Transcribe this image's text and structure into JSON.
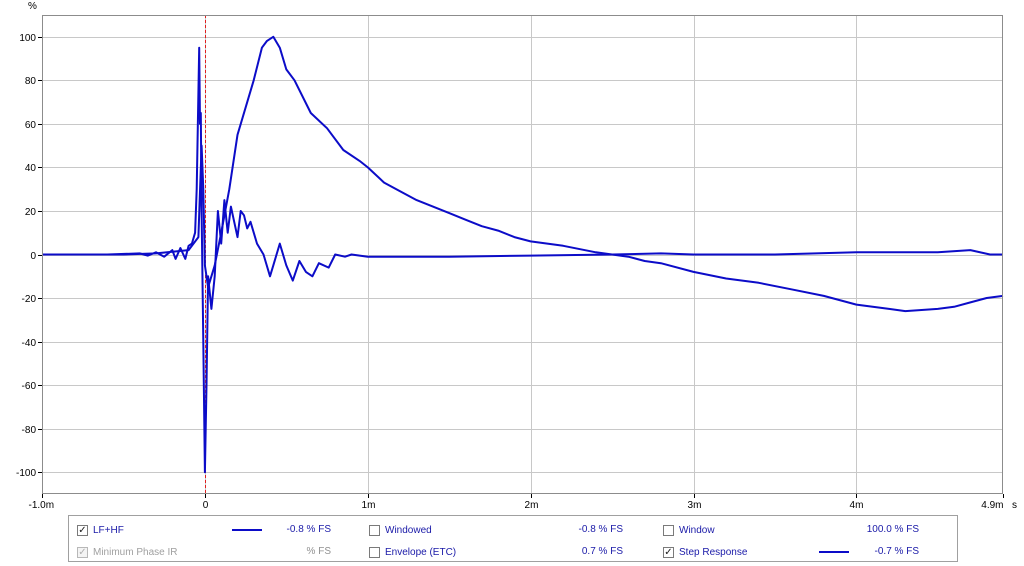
{
  "chart_data": {
    "type": "line",
    "ylabel": "%",
    "xunit": "s",
    "xlim": [
      -1.0,
      4.9
    ],
    "ylim": [
      -110,
      110
    ],
    "x_ticks": [
      {
        "value": -1.0,
        "label": "-1.0m"
      },
      {
        "value": 0,
        "label": "0"
      },
      {
        "value": 1,
        "label": "1m"
      },
      {
        "value": 2,
        "label": "2m"
      },
      {
        "value": 3,
        "label": "3m"
      },
      {
        "value": 4,
        "label": "4m"
      },
      {
        "value": 4.9,
        "label": "4.9m"
      }
    ],
    "y_ticks": [
      100,
      80,
      60,
      40,
      20,
      0,
      -20,
      -40,
      -60,
      -80,
      -100
    ],
    "grid": true,
    "marker_line_x": 0,
    "colors": {
      "series": "#0c0cc8",
      "marker": "#e02020",
      "grid": "#c8c8c8",
      "frame": "#8c8c8c"
    },
    "series": [
      {
        "name": "LF+HF",
        "points": [
          [
            -1.0,
            0
          ],
          [
            -0.6,
            0
          ],
          [
            -0.4,
            0.5
          ],
          [
            -0.35,
            -0.5
          ],
          [
            -0.3,
            1
          ],
          [
            -0.25,
            -1
          ],
          [
            -0.2,
            2
          ],
          [
            -0.18,
            -2
          ],
          [
            -0.15,
            3
          ],
          [
            -0.12,
            -2
          ],
          [
            -0.1,
            4
          ],
          [
            -0.08,
            5
          ],
          [
            -0.06,
            10
          ],
          [
            -0.05,
            30
          ],
          [
            -0.035,
            95
          ],
          [
            -0.03,
            60
          ],
          [
            -0.025,
            65
          ],
          [
            -0.02,
            20
          ],
          [
            -0.01,
            -40
          ],
          [
            0,
            -100
          ],
          [
            0.01,
            -60
          ],
          [
            0.02,
            -10
          ],
          [
            0.04,
            -25
          ],
          [
            0.06,
            -10
          ],
          [
            0.08,
            20
          ],
          [
            0.1,
            5
          ],
          [
            0.12,
            25
          ],
          [
            0.14,
            10
          ],
          [
            0.16,
            22
          ],
          [
            0.18,
            15
          ],
          [
            0.2,
            8
          ],
          [
            0.22,
            20
          ],
          [
            0.24,
            18
          ],
          [
            0.26,
            12
          ],
          [
            0.28,
            15
          ],
          [
            0.32,
            5
          ],
          [
            0.36,
            0
          ],
          [
            0.4,
            -10
          ],
          [
            0.42,
            -5
          ],
          [
            0.46,
            5
          ],
          [
            0.5,
            -5
          ],
          [
            0.54,
            -12
          ],
          [
            0.58,
            -3
          ],
          [
            0.62,
            -8
          ],
          [
            0.66,
            -10
          ],
          [
            0.7,
            -4
          ],
          [
            0.76,
            -6
          ],
          [
            0.8,
            0
          ],
          [
            0.86,
            -1
          ],
          [
            0.9,
            0
          ],
          [
            1.0,
            -1
          ],
          [
            1.5,
            -1
          ],
          [
            2.0,
            -0.5
          ],
          [
            2.5,
            0
          ],
          [
            2.8,
            0.5
          ],
          [
            3.0,
            0
          ],
          [
            3.5,
            0
          ],
          [
            4.0,
            1
          ],
          [
            4.5,
            1
          ],
          [
            4.7,
            2
          ],
          [
            4.82,
            0
          ],
          [
            4.9,
            0
          ]
        ]
      },
      {
        "name": "Step Response",
        "points": [
          [
            -1.0,
            0
          ],
          [
            -0.5,
            0
          ],
          [
            -0.3,
            0.5
          ],
          [
            -0.1,
            2
          ],
          [
            -0.04,
            8
          ],
          [
            -0.02,
            50
          ],
          [
            -0.01,
            30
          ],
          [
            0,
            -5
          ],
          [
            0.02,
            -15
          ],
          [
            0.06,
            -5
          ],
          [
            0.1,
            10
          ],
          [
            0.15,
            30
          ],
          [
            0.2,
            55
          ],
          [
            0.3,
            80
          ],
          [
            0.35,
            95
          ],
          [
            0.38,
            98
          ],
          [
            0.42,
            100
          ],
          [
            0.46,
            95
          ],
          [
            0.5,
            85
          ],
          [
            0.55,
            80
          ],
          [
            0.65,
            65
          ],
          [
            0.75,
            58
          ],
          [
            0.85,
            48
          ],
          [
            0.95,
            43
          ],
          [
            1.0,
            40
          ],
          [
            1.1,
            33
          ],
          [
            1.2,
            29
          ],
          [
            1.3,
            25
          ],
          [
            1.4,
            22
          ],
          [
            1.5,
            19
          ],
          [
            1.6,
            16
          ],
          [
            1.7,
            13
          ],
          [
            1.8,
            11
          ],
          [
            1.9,
            8
          ],
          [
            2.0,
            6
          ],
          [
            2.2,
            4
          ],
          [
            2.4,
            1
          ],
          [
            2.5,
            0
          ],
          [
            2.6,
            -1
          ],
          [
            2.7,
            -3
          ],
          [
            2.8,
            -4
          ],
          [
            3.0,
            -8
          ],
          [
            3.2,
            -11
          ],
          [
            3.4,
            -13
          ],
          [
            3.6,
            -16
          ],
          [
            3.8,
            -19
          ],
          [
            4.0,
            -23
          ],
          [
            4.2,
            -25
          ],
          [
            4.3,
            -26
          ],
          [
            4.5,
            -25
          ],
          [
            4.6,
            -24
          ],
          [
            4.7,
            -22
          ],
          [
            4.8,
            -20
          ],
          [
            4.9,
            -19
          ]
        ]
      }
    ]
  },
  "legend": {
    "items": [
      {
        "name": "lf-hf",
        "label": "LF+HF",
        "checked": true,
        "enabled": true,
        "value": "-0.8 % FS",
        "swatch": true
      },
      {
        "name": "windowed",
        "label": "Windowed",
        "checked": false,
        "enabled": true,
        "value": "-0.8 % FS",
        "swatch": false
      },
      {
        "name": "window",
        "label": "Window",
        "checked": false,
        "enabled": true,
        "value": "100.0 % FS",
        "swatch": false
      },
      {
        "name": "minimum-phase-ir",
        "label": "Minimum Phase IR",
        "checked": true,
        "enabled": false,
        "value": "% FS",
        "swatch": false
      },
      {
        "name": "envelope-etc",
        "label": "Envelope (ETC)",
        "checked": false,
        "enabled": true,
        "value": "0.7 % FS",
        "swatch": false
      },
      {
        "name": "step-response",
        "label": "Step Response",
        "checked": true,
        "enabled": true,
        "value": "-0.7 % FS",
        "swatch": true
      }
    ]
  }
}
